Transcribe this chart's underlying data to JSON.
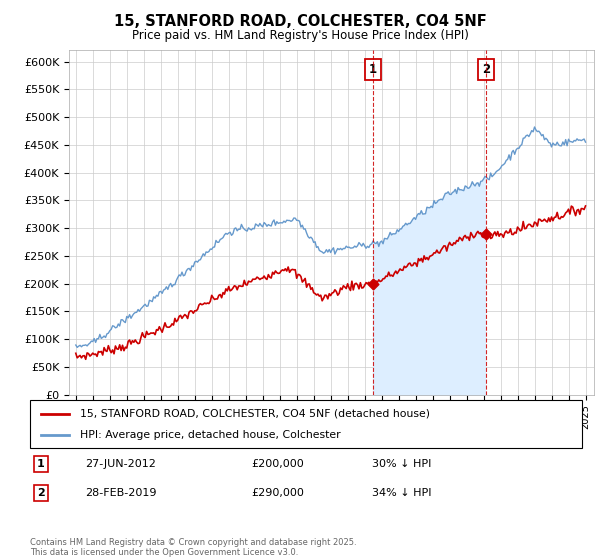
{
  "title": "15, STANFORD ROAD, COLCHESTER, CO4 5NF",
  "subtitle": "Price paid vs. HM Land Registry's House Price Index (HPI)",
  "legend_label_red": "15, STANFORD ROAD, COLCHESTER, CO4 5NF (detached house)",
  "legend_label_blue": "HPI: Average price, detached house, Colchester",
  "annotation1_date": "27-JUN-2012",
  "annotation1_price": "£200,000",
  "annotation1_hpi": "30% ↓ HPI",
  "annotation2_date": "28-FEB-2019",
  "annotation2_price": "£290,000",
  "annotation2_hpi": "34% ↓ HPI",
  "footnote": "Contains HM Land Registry data © Crown copyright and database right 2025.\nThis data is licensed under the Open Government Licence v3.0.",
  "vline1_x": 2012.49,
  "vline2_x": 2019.16,
  "marker1_y": 200000,
  "marker2_y": 290000,
  "ylim": [
    0,
    620000
  ],
  "xlim": [
    1994.6,
    2025.5
  ],
  "yticks": [
    0,
    50000,
    100000,
    150000,
    200000,
    250000,
    300000,
    350000,
    400000,
    450000,
    500000,
    550000,
    600000
  ],
  "color_red": "#cc0000",
  "color_blue": "#6699cc",
  "color_blue_fill": "#ddeeff",
  "hpi_seed": 42,
  "price_seed": 7
}
